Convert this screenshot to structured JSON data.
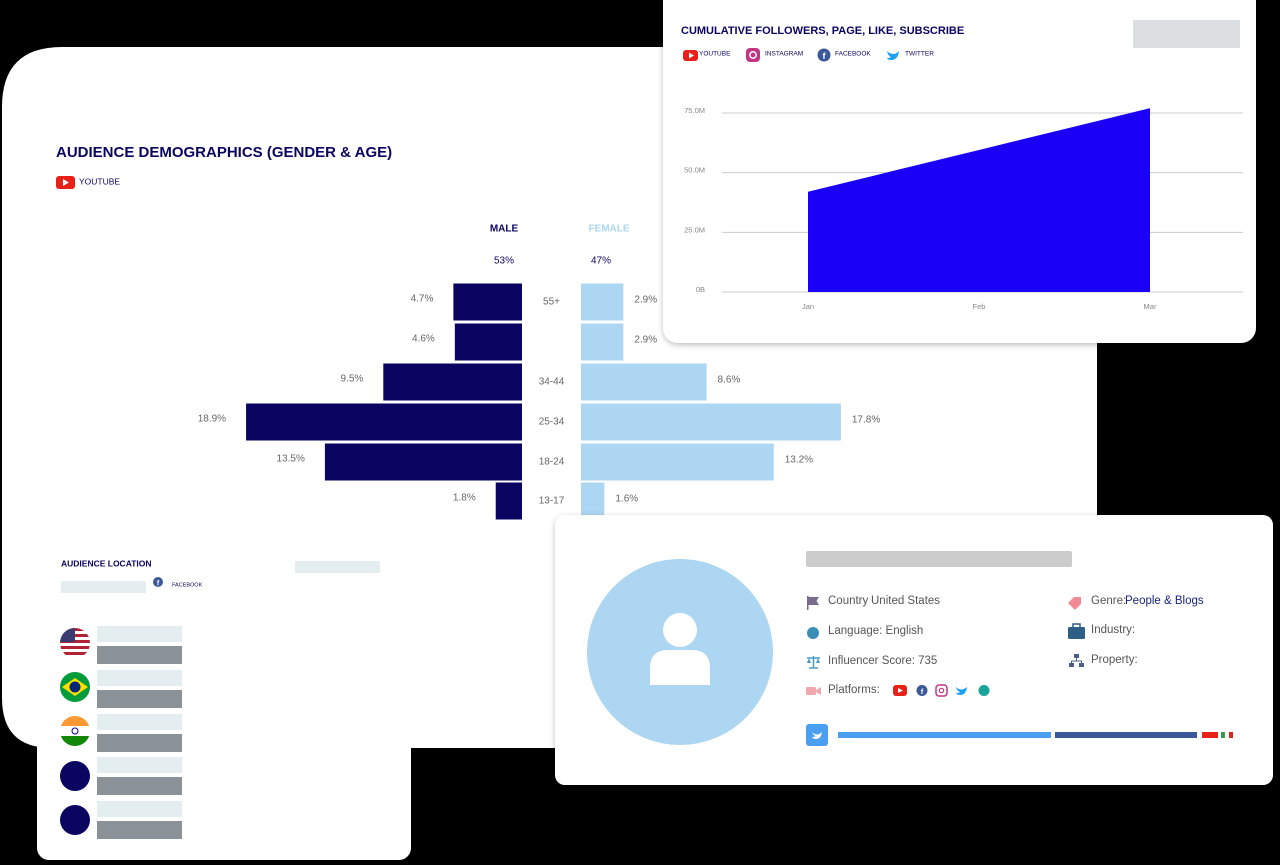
{
  "chart_data": [
    {
      "type": "pyramid",
      "title": "AUDIENCE DEMOGRAPHICS (GENDER & AGE)",
      "platform": "YOUTUBE",
      "categories": [
        "55+",
        null,
        "34-44",
        "25-34",
        "18-24",
        "13-17"
      ],
      "series": [
        {
          "name": "MALE",
          "total": "53%",
          "color": "#0a0560",
          "values": [
            4.7,
            4.6,
            9.5,
            18.9,
            13.5,
            1.8
          ],
          "value_labels": [
            "4.7%",
            "4.6%",
            "9.5%",
            "18.9%",
            "13.5%",
            "1.8%"
          ]
        },
        {
          "name": "FEMALE",
          "total": "47%",
          "color": "#acd6f2",
          "values": [
            2.9,
            2.9,
            8.6,
            17.8,
            13.2,
            1.6
          ],
          "value_labels": [
            "2.9%",
            "2.9%",
            "8.6%",
            "17.8%",
            "13.2%",
            "1.6%"
          ]
        }
      ]
    },
    {
      "type": "area",
      "title": "CUMULATIVE FOLLOWERS, PAGE, LIKE, SUBSCRIBE",
      "legend": [
        "YOUTUBE",
        "INSTAGRAM",
        "FACEBOOK",
        "TWITTER"
      ],
      "x": [
        "Jan",
        "Feb",
        "Mar"
      ],
      "values": [
        42000000,
        59500000,
        77000000
      ],
      "color": "#1a00f5",
      "ylim": [
        0,
        80000000
      ],
      "yticks": [
        {
          "value": 0,
          "label": "0B"
        },
        {
          "value": 25000000,
          "label": "25.0M"
        },
        {
          "value": 50000000,
          "label": "50.0M"
        },
        {
          "value": 75000000,
          "label": "75.0M"
        }
      ],
      "grid": true
    }
  ],
  "location": {
    "title": "AUDIENCE LOCATION",
    "platform": "FACEBOOK"
  },
  "profile": {
    "country_label": "Country",
    "country": "United States",
    "language": "Language: English",
    "score": "Influencer Score: 735",
    "platforms": "Platforms:",
    "genre_label": "Genre:",
    "genre": "People & Blogs",
    "industry": "Industry:",
    "property": "Property:"
  }
}
